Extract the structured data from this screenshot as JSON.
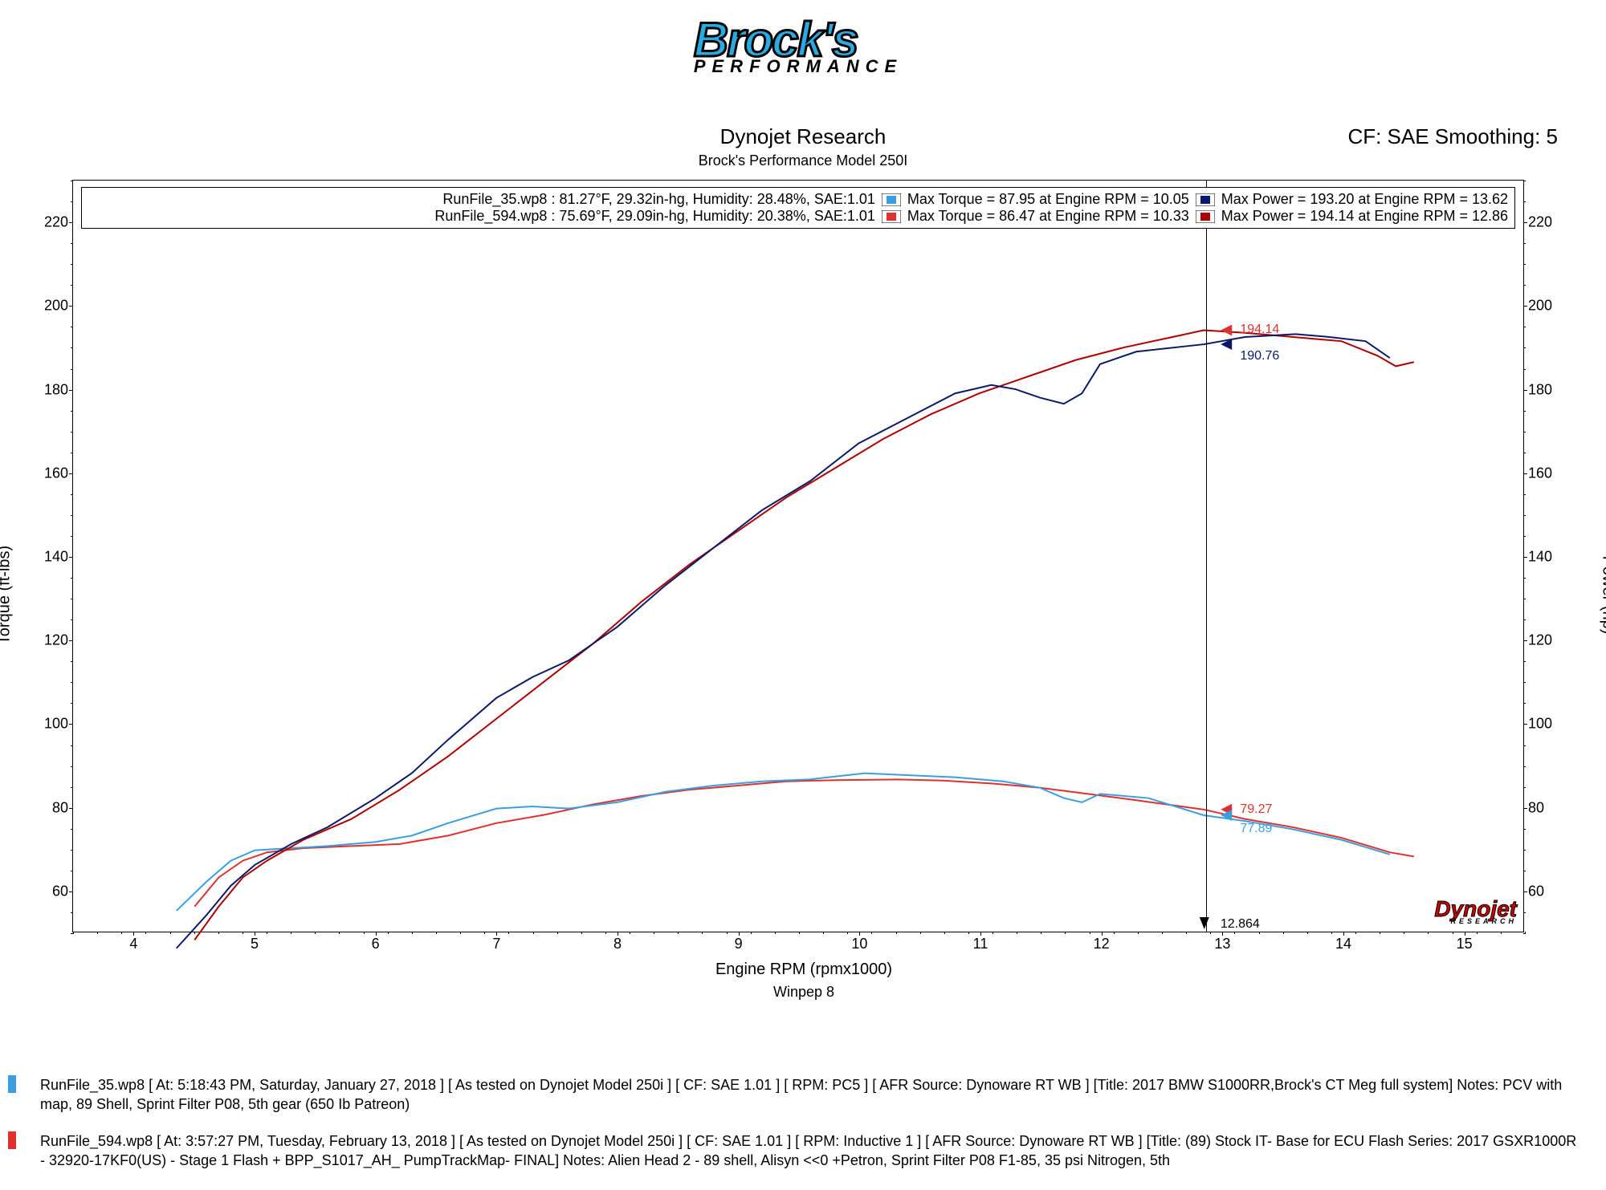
{
  "logo": {
    "main": "Brock's",
    "sub": "PERFORMANCE",
    "main_color": "#29abe2",
    "stroke_color": "#000000"
  },
  "titles": {
    "main": "Dynojet Research",
    "sub": "Brock's Performance Model 250I"
  },
  "cf_label": "CF: SAE Smoothing: 5",
  "axis": {
    "xlabel": "Engine RPM (rpmx1000)",
    "ylabel_left": "Torque (ft-lbs)",
    "ylabel_right": "Power (hp)",
    "xlim": [
      3.5,
      15.5
    ],
    "ylim": [
      50,
      230
    ],
    "xtick_step": 1,
    "xtick_min": 4,
    "xtick_max": 15,
    "ytick_step": 20,
    "ytick_min": 60,
    "ytick_max": 220,
    "xminor_step": 0.2,
    "yminor_step": 5,
    "tick_fontsize": 18,
    "label_fontsize": 20,
    "grid": false
  },
  "winpep": "Winpep 8",
  "legend": {
    "border_color": "#000000",
    "background": "#ffffff",
    "fontsize": 18,
    "rows": [
      {
        "file": "RunFile_35.wp8 : 81.27°F, 29.32in-hg, Humidity: 28.48%, SAE:1.01",
        "torque_color": "#3a9ee0",
        "torque_text": "Max Torque = 87.95 at Engine RPM = 10.05",
        "power_color": "#0a1a6a",
        "power_text": "Max Power = 193.20 at Engine RPM = 13.62"
      },
      {
        "file": "RunFile_594.wp8 : 75.69°F, 29.09in-hg, Humidity: 20.38%, SAE:1.01",
        "torque_color": "#e03030",
        "torque_text": "Max Torque = 86.47 at Engine RPM = 10.33",
        "power_color": "#b00000",
        "power_text": "Max Power = 194.14 at Engine RPM = 12.86"
      }
    ]
  },
  "cursor": {
    "x": 12.864,
    "label": "12.864",
    "arrow_color": "#000000"
  },
  "markers": [
    {
      "x": 13.0,
      "y": 194.14,
      "text": "194.14",
      "color": "#e03030"
    },
    {
      "x": 13.0,
      "y": 190.76,
      "text": "190.76",
      "color": "#0a1a6a"
    },
    {
      "x": 13.0,
      "y": 79.27,
      "text": "79.27",
      "color": "#e03030"
    },
    {
      "x": 13.0,
      "y": 77.89,
      "text": "77.89",
      "color": "#3a9ee0"
    }
  ],
  "curves": {
    "line_width": 2,
    "torque_35": {
      "color": "#3a9ee0",
      "data": [
        [
          4.35,
          55
        ],
        [
          4.6,
          62
        ],
        [
          4.8,
          67
        ],
        [
          5.0,
          69.5
        ],
        [
          5.3,
          70
        ],
        [
          5.6,
          70.5
        ],
        [
          6.0,
          71.5
        ],
        [
          6.3,
          73
        ],
        [
          6.6,
          76
        ],
        [
          7.0,
          79.5
        ],
        [
          7.3,
          80
        ],
        [
          7.6,
          79.5
        ],
        [
          8.0,
          81
        ],
        [
          8.4,
          83.5
        ],
        [
          8.8,
          85
        ],
        [
          9.2,
          86
        ],
        [
          9.6,
          86.5
        ],
        [
          10.05,
          87.95
        ],
        [
          10.4,
          87.5
        ],
        [
          10.8,
          87
        ],
        [
          11.2,
          86
        ],
        [
          11.5,
          84.5
        ],
        [
          11.7,
          82
        ],
        [
          11.85,
          81
        ],
        [
          12.0,
          83
        ],
        [
          12.4,
          82
        ],
        [
          12.86,
          77.89
        ],
        [
          13.2,
          76.5
        ],
        [
          13.6,
          74.5
        ],
        [
          14.0,
          72
        ],
        [
          14.4,
          68.5
        ]
      ]
    },
    "torque_594": {
      "color": "#e03030",
      "data": [
        [
          4.5,
          56
        ],
        [
          4.7,
          63
        ],
        [
          4.9,
          67
        ],
        [
          5.1,
          69
        ],
        [
          5.4,
          70
        ],
        [
          5.8,
          70.5
        ],
        [
          6.2,
          71
        ],
        [
          6.6,
          73
        ],
        [
          7.0,
          76
        ],
        [
          7.4,
          78
        ],
        [
          7.8,
          80.5
        ],
        [
          8.2,
          82.5
        ],
        [
          8.6,
          84
        ],
        [
          9.0,
          85
        ],
        [
          9.4,
          86
        ],
        [
          9.8,
          86.3
        ],
        [
          10.33,
          86.47
        ],
        [
          10.7,
          86.2
        ],
        [
          11.1,
          85.5
        ],
        [
          11.5,
          84.5
        ],
        [
          11.9,
          83
        ],
        [
          12.3,
          81.5
        ],
        [
          12.86,
          79.27
        ],
        [
          13.2,
          77
        ],
        [
          13.6,
          75
        ],
        [
          14.0,
          72.5
        ],
        [
          14.4,
          69
        ],
        [
          14.6,
          68
        ]
      ]
    },
    "power_35": {
      "color": "#0a1a6a",
      "data": [
        [
          4.35,
          46
        ],
        [
          4.6,
          54
        ],
        [
          4.8,
          61
        ],
        [
          5.0,
          66
        ],
        [
          5.3,
          71
        ],
        [
          5.6,
          75
        ],
        [
          6.0,
          82
        ],
        [
          6.3,
          88
        ],
        [
          6.6,
          96
        ],
        [
          7.0,
          106
        ],
        [
          7.3,
          111
        ],
        [
          7.6,
          115
        ],
        [
          8.0,
          123
        ],
        [
          8.4,
          133
        ],
        [
          8.8,
          142
        ],
        [
          9.2,
          151
        ],
        [
          9.6,
          158
        ],
        [
          10.0,
          167
        ],
        [
          10.4,
          173
        ],
        [
          10.8,
          179
        ],
        [
          11.1,
          181
        ],
        [
          11.3,
          180
        ],
        [
          11.5,
          178
        ],
        [
          11.7,
          176.5
        ],
        [
          11.85,
          179
        ],
        [
          12.0,
          186
        ],
        [
          12.3,
          189
        ],
        [
          12.86,
          190.76
        ],
        [
          13.2,
          192.5
        ],
        [
          13.62,
          193.2
        ],
        [
          13.9,
          192.5
        ],
        [
          14.2,
          191.5
        ],
        [
          14.4,
          187.5
        ]
      ]
    },
    "power_594": {
      "color": "#b00000",
      "data": [
        [
          4.5,
          48
        ],
        [
          4.7,
          56
        ],
        [
          4.9,
          63
        ],
        [
          5.1,
          67
        ],
        [
          5.4,
          72
        ],
        [
          5.8,
          77
        ],
        [
          6.2,
          84
        ],
        [
          6.6,
          92
        ],
        [
          7.0,
          101
        ],
        [
          7.4,
          110
        ],
        [
          7.8,
          119
        ],
        [
          8.2,
          129
        ],
        [
          8.6,
          138
        ],
        [
          9.0,
          146
        ],
        [
          9.4,
          154
        ],
        [
          9.8,
          161
        ],
        [
          10.2,
          168
        ],
        [
          10.6,
          174
        ],
        [
          11.0,
          179
        ],
        [
          11.4,
          183
        ],
        [
          11.8,
          187
        ],
        [
          12.2,
          190
        ],
        [
          12.6,
          192.5
        ],
        [
          12.86,
          194.14
        ],
        [
          13.2,
          193.5
        ],
        [
          13.6,
          192.5
        ],
        [
          14.0,
          191.5
        ],
        [
          14.3,
          188
        ],
        [
          14.45,
          185.5
        ],
        [
          14.6,
          186.5
        ]
      ]
    }
  },
  "dynojet": {
    "main": "Dynojet",
    "sub": "RESEARCH",
    "color": "#cc0000"
  },
  "footer": {
    "notes": [
      {
        "swatch": "#3a9ee0",
        "text": "RunFile_35.wp8 [ At: 5:18:43 PM, Saturday, January 27, 2018 ] [ As tested on Dynojet Model 250i ] [ CF: SAE 1.01 ] [ RPM: PC5 ] [ AFR Source: Dynoware RT WB ] [Title: 2017 BMW S1000RR,Brock's CT Meg full system]  Notes: PCV with map, 89 Shell, Sprint Filter P08, 5th gear (650 Ib Patreon)"
      },
      {
        "swatch": "#e03030",
        "text": "RunFile_594.wp8 [ At: 3:57:27 PM, Tuesday, February 13, 2018 ] [ As tested on Dynojet Model 250i ] [ CF: SAE 1.01 ] [ RPM: Inductive 1 ] [ AFR Source: Dynoware RT WB ] [Title: (89) Stock IT- Base for ECU Flash Series: 2017 GSXR1000R - 32920-17KF0(US) - Stage 1 Flash + BPP_S1017_AH_ PumpTrackMap- FINAL]  Notes: Alien Head 2 - 89 shell, Alisyn <<0 +Petron, Sprint Filter P08 F1-85, 35 psi Nitrogen, 5th"
      }
    ]
  }
}
